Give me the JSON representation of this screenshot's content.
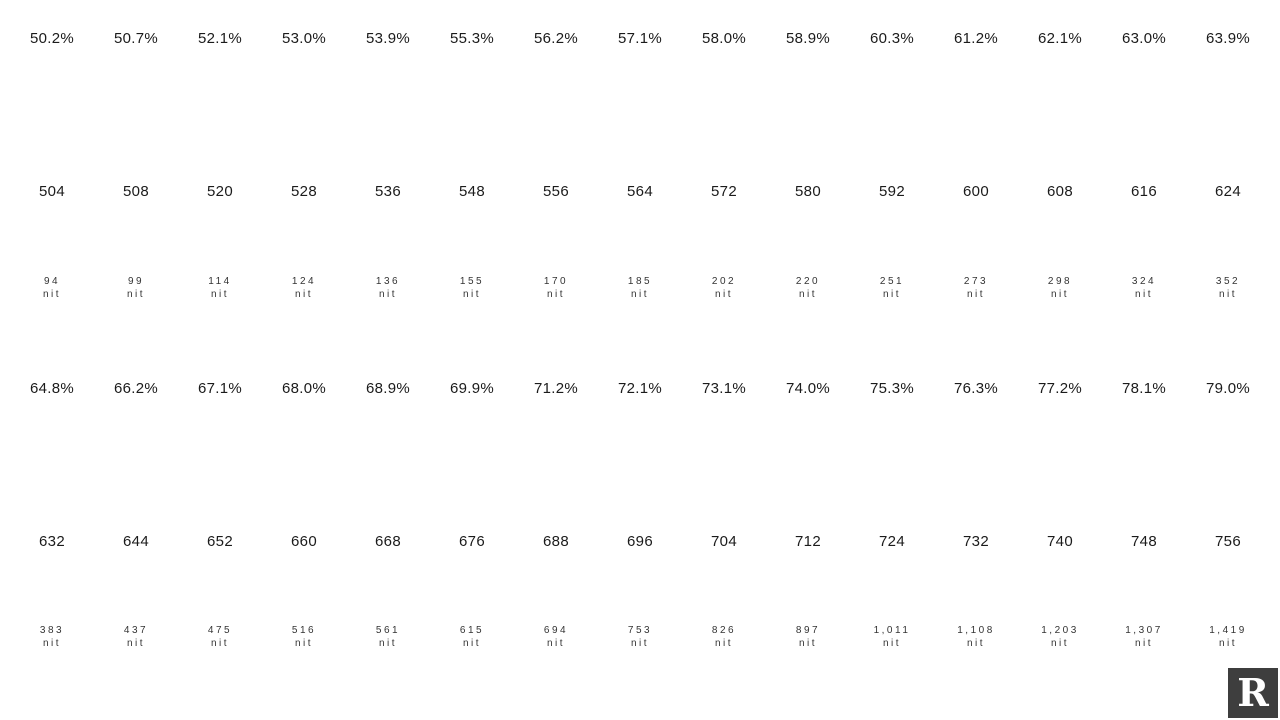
{
  "chart_data": {
    "type": "table",
    "columns": 15,
    "description_hint": "brightness settings with measured luminance",
    "rows": [
      {
        "name": "brightness-percent-upper",
        "type": "percent",
        "values": [
          "50.2%",
          "50.7%",
          "52.1%",
          "53.0%",
          "53.9%",
          "55.3%",
          "56.2%",
          "57.1%",
          "58.0%",
          "58.9%",
          "60.3%",
          "61.2%",
          "62.1%",
          "63.0%",
          "63.9%"
        ]
      },
      {
        "name": "setting-value-upper",
        "type": "number",
        "values": [
          "504",
          "508",
          "520",
          "528",
          "536",
          "548",
          "556",
          "564",
          "572",
          "580",
          "592",
          "600",
          "608",
          "616",
          "624"
        ]
      },
      {
        "name": "luminance-upper",
        "type": "nit",
        "unit": "nit",
        "values": [
          "94",
          "99",
          "114",
          "124",
          "136",
          "155",
          "170",
          "185",
          "202",
          "220",
          "251",
          "273",
          "298",
          "324",
          "352"
        ]
      },
      {
        "name": "brightness-percent-lower",
        "type": "percent",
        "values": [
          "64.8%",
          "66.2%",
          "67.1%",
          "68.0%",
          "68.9%",
          "69.9%",
          "71.2%",
          "72.1%",
          "73.1%",
          "74.0%",
          "75.3%",
          "76.3%",
          "77.2%",
          "78.1%",
          "79.0%"
        ]
      },
      {
        "name": "setting-value-lower",
        "type": "number",
        "values": [
          "632",
          "644",
          "652",
          "660",
          "668",
          "676",
          "688",
          "696",
          "704",
          "712",
          "724",
          "732",
          "740",
          "748",
          "756"
        ]
      },
      {
        "name": "luminance-lower",
        "type": "nit",
        "unit": "nit",
        "values": [
          "383",
          "437",
          "475",
          "516",
          "561",
          "615",
          "694",
          "753",
          "826",
          "897",
          "1,011",
          "1,108",
          "1,203",
          "1,307",
          "1,419"
        ]
      }
    ]
  },
  "logo": {
    "letter": "R",
    "background": "#3e3e3e",
    "color": "#ffffff"
  }
}
